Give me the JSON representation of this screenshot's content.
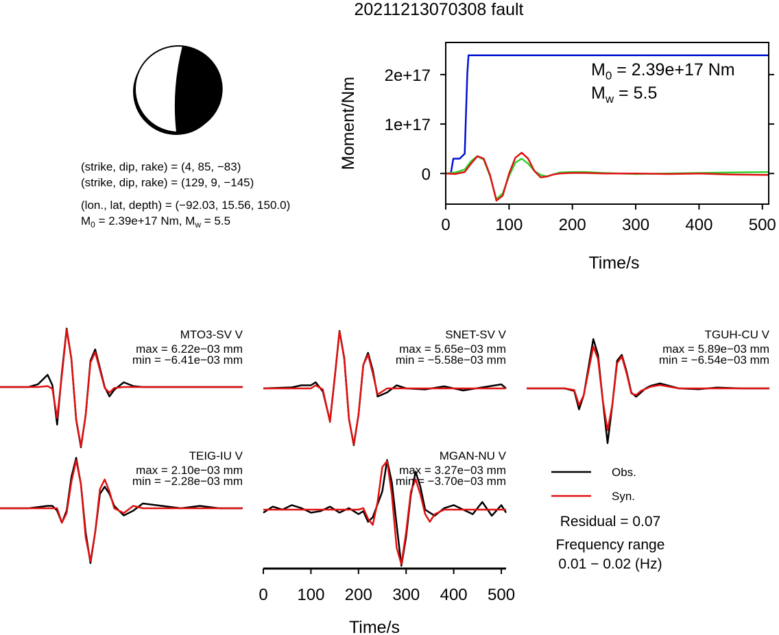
{
  "title": "20211213070308 fault",
  "source_info": {
    "plane1": "(strike, dip, rake) = (4, 85, −83)",
    "plane2": "(strike, dip, rake) = (129, 9, −145)",
    "location": "(lon., lat, depth) = (−92.03, 15.56, 150.0)",
    "moment_prefix": "M",
    "moment_sub": "0",
    "moment_rest": " = 2.39e+17 Nm, M",
    "mw_sub": "w",
    "mw_rest": " = 5.5"
  },
  "moment_annotation": {
    "m0_main": "M",
    "m0_sub": "0",
    "m0_value": " = 2.39e+17 Nm",
    "mw_main": "M",
    "mw_sub": "w",
    "mw_value": " = 5.5"
  },
  "colors": {
    "observed": "#000000",
    "synthetic": "#e01010",
    "moment_curve": "#0010d0",
    "stf_green": "#30d030"
  },
  "chart_data": [
    {
      "type": "line",
      "title": "",
      "xlabel": "Time/s",
      "ylabel": "Moment/Nm",
      "xlim": [
        0,
        510
      ],
      "ylim": [
        -62000000000000000,
        265000000000000000
      ],
      "xticks": [
        "0",
        "100",
        "200",
        "300",
        "400",
        "500"
      ],
      "xtick_values": [
        0,
        100,
        200,
        300,
        400,
        500
      ],
      "yticks": [
        "0",
        "1e+17",
        "2e+17"
      ],
      "ytick_values": [
        0,
        100000000000000000,
        200000000000000000
      ],
      "series": [
        {
          "key": "cumulative_moment",
          "color": "#0010d0",
          "x": [
            0,
            8,
            12,
            22,
            30,
            34,
            36,
            510
          ],
          "y": [
            0,
            0,
            30000000000000000,
            30000000000000000,
            40000000000000000,
            200000000000000000,
            239000000000000000,
            239000000000000000
          ]
        },
        {
          "key": "green",
          "color": "#30d030",
          "x": [
            0,
            15,
            30,
            40,
            50,
            60,
            70,
            80,
            90,
            100,
            110,
            120,
            130,
            140,
            150,
            160,
            170,
            180,
            200,
            220,
            250,
            300,
            350,
            400,
            450,
            510
          ],
          "y": [
            0,
            2000000000000000,
            8000000000000000,
            25000000000000000,
            35000000000000000,
            28000000000000000,
            -5000000000000000,
            -52000000000000000,
            -40000000000000000,
            -5000000000000000,
            22000000000000000,
            30000000000000000,
            20000000000000000,
            5000000000000000,
            -3000000000000000,
            -6000000000000000,
            -2000000000000000,
            2000000000000000,
            3000000000000000,
            3000000000000000,
            1000000000000000,
            -1000000000000000,
            0,
            1000000000000000,
            2000000000000000,
            3000000000000000
          ]
        },
        {
          "key": "red",
          "color": "#e01010",
          "x": [
            0,
            15,
            30,
            40,
            50,
            60,
            70,
            80,
            90,
            100,
            110,
            120,
            130,
            140,
            150,
            160,
            170,
            180,
            200,
            220,
            250,
            300,
            350,
            400,
            450,
            510
          ],
          "y": [
            0,
            -1000000000000000,
            3000000000000000,
            20000000000000000,
            35000000000000000,
            30000000000000000,
            -3000000000000000,
            -55000000000000000,
            -45000000000000000,
            0,
            32000000000000000,
            42000000000000000,
            30000000000000000,
            5000000000000000,
            -8000000000000000,
            -6000000000000000,
            -2000000000000000,
            0,
            1000000000000000,
            1000000000000000,
            0,
            0,
            -1000000000000000,
            0,
            -2000000000000000,
            -3000000000000000
          ]
        }
      ]
    },
    {
      "type": "line",
      "station": "MTO3-SV V",
      "max_text": "max = 6.22e−03 mm",
      "min_text": "min = −6.41e−03 mm",
      "xlim": [
        0,
        510
      ],
      "ylim": [
        -6.41,
        6.22
      ],
      "series": [
        {
          "name": "Obs.",
          "color": "#000000",
          "x": [
            0,
            60,
            80,
            100,
            110,
            120,
            130,
            140,
            150,
            160,
            170,
            180,
            190,
            200,
            210,
            220,
            230,
            240,
            260,
            280,
            300,
            320,
            340,
            360,
            400,
            450,
            510
          ],
          "y": [
            0,
            0,
            0.3,
            1.3,
            0.2,
            -4.0,
            1.5,
            6.22,
            3.0,
            -3.5,
            -6.41,
            -3.0,
            2.8,
            4.0,
            2.0,
            0.0,
            -1.0,
            -0.3,
            0.5,
            0.1,
            0,
            0,
            0,
            0,
            0,
            0,
            0
          ]
        },
        {
          "name": "Syn.",
          "color": "#e01010",
          "x": [
            0,
            80,
            100,
            110,
            120,
            130,
            140,
            150,
            160,
            170,
            180,
            190,
            200,
            210,
            220,
            230,
            240,
            260,
            280,
            320,
            360,
            400,
            450,
            510
          ],
          "y": [
            0,
            0,
            0.1,
            -0.2,
            -3.3,
            1.2,
            6.1,
            3.0,
            -3.4,
            -6.3,
            -3.0,
            2.6,
            3.7,
            1.8,
            -0.1,
            -0.6,
            -0.1,
            0,
            0,
            0,
            0,
            0,
            0,
            0
          ]
        }
      ]
    },
    {
      "type": "line",
      "station": "SNET-SV V",
      "max_text": "max = 5.65e−03 mm",
      "min_text": "min = −5.58e−03 mm",
      "xlim": [
        0,
        510
      ],
      "ylim": [
        -5.58,
        5.65
      ],
      "series": [
        {
          "name": "Obs.",
          "color": "#000000",
          "x": [
            0,
            60,
            80,
            100,
            110,
            125,
            140,
            150,
            160,
            170,
            180,
            190,
            200,
            210,
            220,
            230,
            240,
            260,
            280,
            300,
            340,
            380,
            420,
            460,
            500,
            510
          ],
          "y": [
            0,
            0.1,
            0.3,
            0.3,
            0.6,
            -0.3,
            -3.2,
            1.0,
            5.65,
            3.0,
            -3.0,
            -5.58,
            -2.6,
            2.3,
            3.5,
            1.8,
            -0.8,
            -0.4,
            0.3,
            0,
            -0.1,
            0.2,
            -0.2,
            0.1,
            0.4,
            0
          ]
        },
        {
          "name": "Syn.",
          "color": "#e01010",
          "x": [
            0,
            100,
            110,
            125,
            140,
            150,
            160,
            170,
            180,
            190,
            200,
            210,
            220,
            230,
            240,
            260,
            280,
            320,
            360,
            400,
            450,
            510
          ],
          "y": [
            0,
            0,
            0.3,
            -0.1,
            -3.3,
            1.1,
            5.6,
            2.9,
            -3.0,
            -5.5,
            -2.6,
            2.3,
            3.3,
            1.5,
            -0.6,
            0,
            0,
            0,
            0,
            0,
            0,
            0
          ]
        }
      ]
    },
    {
      "type": "line",
      "station": "TGUH-CU V",
      "max_text": "max = 5.89e−03 mm",
      "min_text": "min = −6.54e−03 mm",
      "xlim": [
        0,
        510
      ],
      "ylim": [
        -6.54,
        5.89
      ],
      "series": [
        {
          "name": "Obs.",
          "color": "#000000",
          "x": [
            0,
            80,
            100,
            110,
            120,
            140,
            150,
            160,
            170,
            180,
            190,
            200,
            210,
            220,
            230,
            240,
            250,
            260,
            280,
            300,
            320,
            360,
            400,
            450,
            510
          ],
          "y": [
            0,
            0,
            -0.3,
            -2.5,
            -0.8,
            5.89,
            4.0,
            -1.5,
            -6.54,
            -2.0,
            3.3,
            4.0,
            2.0,
            -0.5,
            -1.0,
            -0.5,
            0.0,
            0.3,
            0.6,
            0.3,
            0.0,
            -0.1,
            0.1,
            0.0,
            0
          ]
        },
        {
          "name": "Syn.",
          "color": "#e01010",
          "x": [
            0,
            80,
            100,
            110,
            120,
            140,
            150,
            160,
            170,
            180,
            190,
            200,
            210,
            220,
            230,
            240,
            260,
            280,
            320,
            360,
            400,
            450,
            510
          ],
          "y": [
            0,
            0,
            -0.2,
            -2.0,
            -0.8,
            5.0,
            3.5,
            -1.5,
            -5.0,
            -2.0,
            3.0,
            3.8,
            1.8,
            -0.6,
            -0.8,
            -0.3,
            0.2,
            0.4,
            0,
            0,
            0,
            0,
            0
          ]
        }
      ]
    },
    {
      "type": "line",
      "station": "TEIG-IU V",
      "max_text": "max = 2.10e−03 mm",
      "min_text": "min = −2.28e−03 mm",
      "xlim": [
        0,
        510
      ],
      "ylim": [
        -2.28,
        2.1
      ],
      "series": [
        {
          "name": "Obs.",
          "color": "#000000",
          "x": [
            0,
            60,
            80,
            100,
            110,
            120,
            130,
            140,
            150,
            160,
            170,
            180,
            190,
            200,
            210,
            220,
            230,
            240,
            260,
            280,
            300,
            340,
            380,
            420,
            460,
            510
          ],
          "y": [
            0,
            0,
            0.05,
            0.1,
            0.1,
            -0.1,
            -0.6,
            -0.1,
            1.3,
            2.1,
            1.0,
            -1.0,
            -2.28,
            -1.0,
            0.6,
            0.9,
            0.6,
            0.1,
            -0.3,
            -0.1,
            0.2,
            0.1,
            0,
            0.1,
            0,
            0
          ]
        },
        {
          "name": "Syn.",
          "color": "#e01010",
          "x": [
            0,
            100,
            110,
            120,
            130,
            140,
            150,
            160,
            170,
            180,
            190,
            200,
            210,
            220,
            230,
            240,
            260,
            280,
            300,
            340,
            380,
            420,
            460,
            510
          ],
          "y": [
            0,
            0,
            0,
            0,
            -0.6,
            -0.2,
            1.1,
            2.0,
            1.0,
            -1.2,
            -2.2,
            -1.0,
            0.8,
            1.2,
            0.7,
            0.0,
            -0.2,
            0.1,
            0,
            0,
            0,
            0,
            0,
            0
          ]
        }
      ]
    },
    {
      "type": "line",
      "station": "MGAN-NU V",
      "max_text": "max = 3.27e−03 mm",
      "min_text": "min = −3.70e−03 mm",
      "xlim": [
        0,
        510
      ],
      "ylim": [
        -3.7,
        3.27
      ],
      "xlabel": "Time/s",
      "xticks": [
        "0",
        "100",
        "200",
        "300",
        "400",
        "500"
      ],
      "xtick_values": [
        0,
        100,
        200,
        300,
        400,
        500
      ],
      "series": [
        {
          "name": "Obs.",
          "color": "#000000",
          "x": [
            0,
            20,
            40,
            60,
            80,
            100,
            120,
            140,
            160,
            180,
            200,
            210,
            220,
            230,
            250,
            260,
            270,
            280,
            290,
            300,
            310,
            320,
            330,
            340,
            360,
            380,
            400,
            420,
            440,
            460,
            480,
            500,
            510
          ],
          "y": [
            -0.2,
            0.2,
            0.0,
            0.3,
            0.1,
            -0.2,
            -0.1,
            0.2,
            -0.2,
            0.1,
            -0.3,
            -0.1,
            -0.8,
            -0.5,
            1.2,
            3.27,
            1.8,
            -1.0,
            -3.7,
            -1.8,
            1.0,
            2.5,
            1.5,
            0.0,
            -0.4,
            0.1,
            0.3,
            0.0,
            -0.3,
            0.5,
            -0.4,
            0.3,
            -0.2
          ]
        },
        {
          "name": "Syn.",
          "color": "#e01010",
          "x": [
            0,
            100,
            200,
            210,
            220,
            230,
            240,
            250,
            260,
            270,
            280,
            290,
            300,
            310,
            320,
            330,
            340,
            350,
            360,
            380,
            420,
            460,
            510
          ],
          "y": [
            0,
            0,
            0,
            0.1,
            -0.6,
            -1.0,
            0.5,
            2.8,
            3.2,
            1.0,
            -2.5,
            -3.6,
            -1.5,
            1.2,
            2.0,
            1.0,
            -0.3,
            -0.8,
            -0.3,
            0,
            0,
            0,
            0
          ]
        }
      ]
    }
  ],
  "legend": {
    "obs_label": "Obs.",
    "syn_label": "Syn."
  },
  "residual": "Residual = 0.07",
  "frequency_label": "Frequency range",
  "frequency_value": "0.01 − 0.02 (Hz)"
}
